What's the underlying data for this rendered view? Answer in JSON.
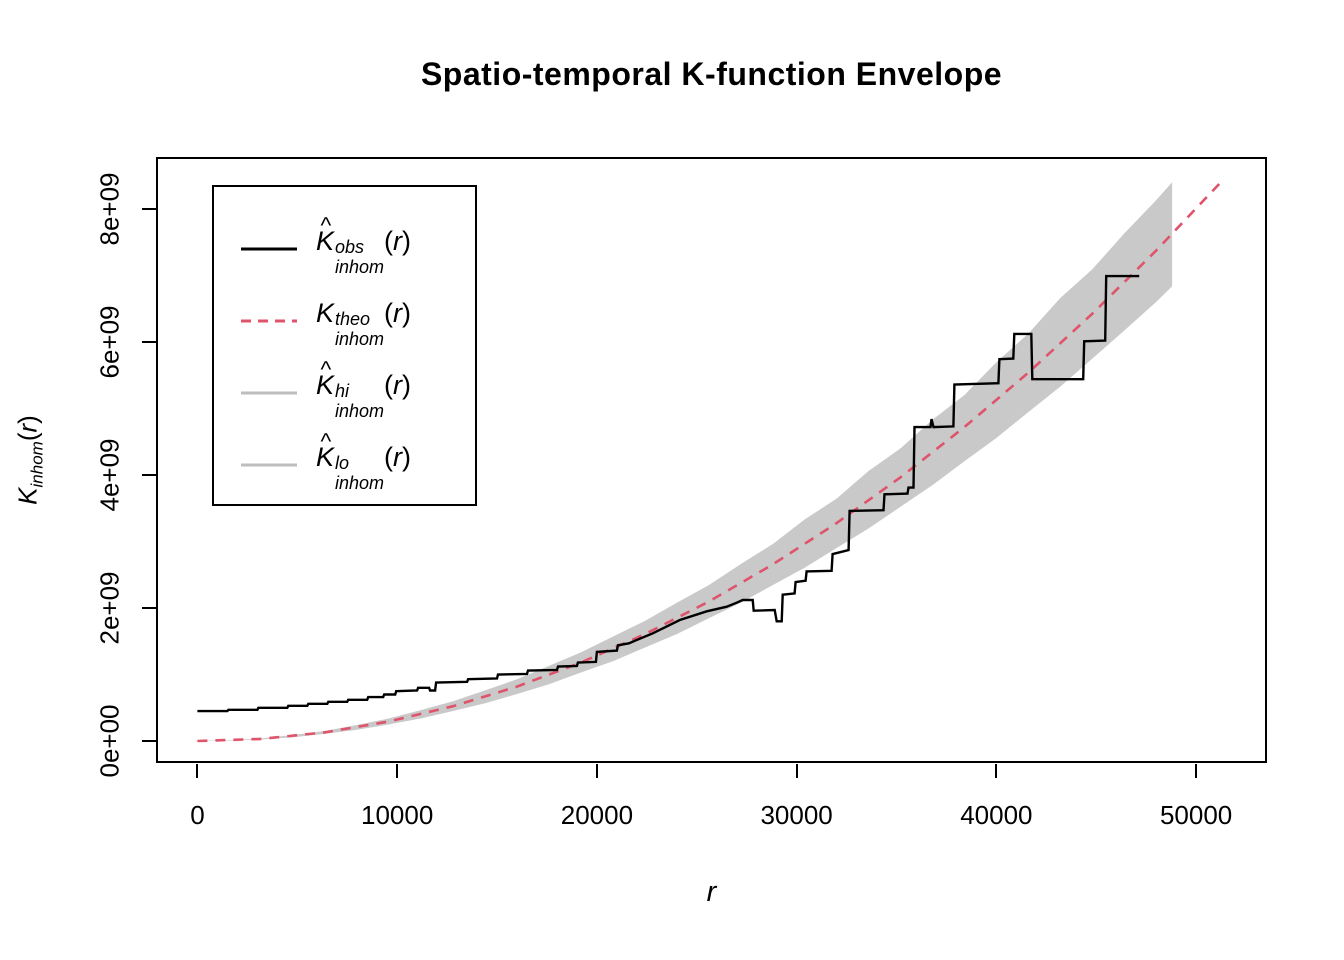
{
  "title": "Spatio-temporal K-function Envelope",
  "x_axis": {
    "label": "r",
    "ticks": [
      {
        "v": 0,
        "t": "0"
      },
      {
        "v": 10000,
        "t": "10000"
      },
      {
        "v": 20000,
        "t": "20000"
      },
      {
        "v": 30000,
        "t": "30000"
      },
      {
        "v": 40000,
        "t": "40000"
      },
      {
        "v": 50000,
        "t": "50000"
      }
    ]
  },
  "y_axis": {
    "label_base": "K",
    "label_sub": "inhom",
    "label_arg": "r",
    "ticks": [
      {
        "v": 0,
        "t": "0e+00"
      },
      {
        "v": 2,
        "t": "2e+09"
      },
      {
        "v": 4,
        "t": "4e+09"
      },
      {
        "v": 6,
        "t": "6e+09"
      },
      {
        "v": 8,
        "t": "8e+09"
      }
    ]
  },
  "colors": {
    "observed": "#000000",
    "theoretical": "#DF536B",
    "envelope_fill": "#C9C9C9",
    "legend_gray": "#BEBEBE",
    "background": "#FFFFFF",
    "text": "#000000"
  },
  "legend": {
    "entries": [
      {
        "id": "obs",
        "hat": true,
        "base": "K",
        "sup": "obs",
        "sub": "inhom",
        "arg": "r",
        "line_color": "#000000",
        "dashed": false
      },
      {
        "id": "theo",
        "hat": false,
        "base": "K",
        "sup": "theo",
        "sub": "inhom",
        "arg": "r",
        "line_color": "#DF536B",
        "dashed": true
      },
      {
        "id": "hi",
        "hat": true,
        "base": "K",
        "sup": "hi",
        "sub": "inhom",
        "arg": "r",
        "line_color": "#BEBEBE",
        "dashed": false
      },
      {
        "id": "lo",
        "hat": true,
        "base": "K",
        "sup": "lo",
        "sub": "inhom",
        "arg": "r",
        "line_color": "#BEBEBE",
        "dashed": false
      }
    ]
  },
  "chart_data": {
    "type": "line",
    "title": "Spatio-temporal K-function Envelope",
    "xlabel": "r",
    "ylabel": "K_inhom(r)",
    "y_unit": "1e9",
    "xlim": [
      -2075,
      53550
    ],
    "ylim": [
      -0.33,
      8.78
    ],
    "grid": false,
    "legend_position": "top-left",
    "series": [
      {
        "name": "obs",
        "role": "observed",
        "color": "#000000",
        "dashed": false,
        "width": 2.4,
        "points": [
          [
            0,
            0.45
          ],
          [
            1500,
            0.45
          ],
          [
            1550,
            0.47
          ],
          [
            3000,
            0.47
          ],
          [
            3050,
            0.5
          ],
          [
            4500,
            0.5
          ],
          [
            4550,
            0.53
          ],
          [
            5500,
            0.53
          ],
          [
            5550,
            0.56
          ],
          [
            6500,
            0.56
          ],
          [
            6550,
            0.59
          ],
          [
            7500,
            0.59
          ],
          [
            7550,
            0.62
          ],
          [
            8500,
            0.62
          ],
          [
            8550,
            0.66
          ],
          [
            9300,
            0.66
          ],
          [
            9350,
            0.7
          ],
          [
            9900,
            0.7
          ],
          [
            9950,
            0.75
          ],
          [
            11000,
            0.76
          ],
          [
            11050,
            0.8
          ],
          [
            11600,
            0.8
          ],
          [
            11650,
            0.76
          ],
          [
            11900,
            0.76
          ],
          [
            11950,
            0.88
          ],
          [
            13500,
            0.89
          ],
          [
            13550,
            0.93
          ],
          [
            15000,
            0.94
          ],
          [
            15050,
            1.0
          ],
          [
            16500,
            1.01
          ],
          [
            16550,
            1.06
          ],
          [
            18000,
            1.07
          ],
          [
            18050,
            1.12
          ],
          [
            19000,
            1.13
          ],
          [
            19050,
            1.18
          ],
          [
            19950,
            1.19
          ],
          [
            20000,
            1.34
          ],
          [
            21000,
            1.36
          ],
          [
            21050,
            1.44
          ],
          [
            21600,
            1.47
          ],
          [
            22800,
            1.62
          ],
          [
            24150,
            1.82
          ],
          [
            25500,
            1.95
          ],
          [
            26500,
            2.02
          ],
          [
            27000,
            2.08
          ],
          [
            27300,
            2.12
          ],
          [
            27800,
            2.12
          ],
          [
            27850,
            1.96
          ],
          [
            28900,
            1.97
          ],
          [
            29000,
            1.8
          ],
          [
            29250,
            1.8
          ],
          [
            29300,
            2.2
          ],
          [
            29900,
            2.22
          ],
          [
            29950,
            2.39
          ],
          [
            30450,
            2.41
          ],
          [
            30500,
            2.55
          ],
          [
            31750,
            2.56
          ],
          [
            31800,
            2.81
          ],
          [
            32600,
            2.87
          ],
          [
            32650,
            3.46
          ],
          [
            34350,
            3.47
          ],
          [
            34400,
            3.71
          ],
          [
            35550,
            3.72
          ],
          [
            35600,
            3.81
          ],
          [
            35850,
            3.81
          ],
          [
            35900,
            4.72
          ],
          [
            36700,
            4.72
          ],
          [
            36750,
            4.84
          ],
          [
            36850,
            4.72
          ],
          [
            37850,
            4.73
          ],
          [
            37900,
            5.36
          ],
          [
            40100,
            5.38
          ],
          [
            40150,
            5.74
          ],
          [
            40850,
            5.75
          ],
          [
            40900,
            6.12
          ],
          [
            41750,
            6.12
          ],
          [
            41800,
            5.44
          ],
          [
            44350,
            5.44
          ],
          [
            44400,
            6.01
          ],
          [
            45450,
            6.02
          ],
          [
            45500,
            6.99
          ],
          [
            47150,
            6.99
          ]
        ]
      },
      {
        "name": "theo",
        "role": "theoretical",
        "color": "#DF536B",
        "dashed": true,
        "width": 2.6,
        "points": [
          [
            0,
            0
          ],
          [
            3200,
            0.033
          ],
          [
            6400,
            0.131
          ],
          [
            9600,
            0.295
          ],
          [
            12800,
            0.524
          ],
          [
            16000,
            0.819
          ],
          [
            19200,
            1.18
          ],
          [
            22400,
            1.606
          ],
          [
            25600,
            2.097
          ],
          [
            28800,
            2.654
          ],
          [
            32000,
            3.277
          ],
          [
            35200,
            3.965
          ],
          [
            38400,
            4.719
          ],
          [
            41600,
            5.538
          ],
          [
            44800,
            6.423
          ],
          [
            48000,
            7.373
          ],
          [
            51200,
            8.389
          ]
        ]
      },
      {
        "name": "hi",
        "role": "envelope-upper",
        "color": "#C9C9C9",
        "dashed": false,
        "width": 1,
        "points": [
          [
            0,
            0.004
          ],
          [
            1600,
            0.013
          ],
          [
            3200,
            0.04
          ],
          [
            4800,
            0.091
          ],
          [
            6400,
            0.152
          ],
          [
            8000,
            0.243
          ],
          [
            9600,
            0.34
          ],
          [
            11200,
            0.466
          ],
          [
            12800,
            0.598
          ],
          [
            14400,
            0.762
          ],
          [
            16000,
            0.928
          ],
          [
            17600,
            1.13
          ],
          [
            19200,
            1.332
          ],
          [
            20800,
            1.57
          ],
          [
            22400,
            1.804
          ],
          [
            24000,
            2.08
          ],
          [
            25600,
            2.345
          ],
          [
            27200,
            2.66
          ],
          [
            28800,
            2.96
          ],
          [
            30400,
            3.33
          ],
          [
            32000,
            3.645
          ],
          [
            33600,
            4.06
          ],
          [
            35200,
            4.4
          ],
          [
            36800,
            4.83
          ],
          [
            38400,
            5.2
          ],
          [
            40000,
            5.695
          ],
          [
            41600,
            6.125
          ],
          [
            43200,
            6.66
          ],
          [
            44800,
            7.09
          ],
          [
            46400,
            7.63
          ],
          [
            48000,
            8.13
          ],
          [
            48800,
            8.4
          ]
        ]
      },
      {
        "name": "lo",
        "role": "envelope-lower",
        "color": "#C9C9C9",
        "dashed": false,
        "width": 1,
        "points": [
          [
            0,
            0.0
          ],
          [
            1600,
            0.004
          ],
          [
            3200,
            0.025
          ],
          [
            4800,
            0.058
          ],
          [
            6400,
            0.11
          ],
          [
            8000,
            0.17
          ],
          [
            9600,
            0.25
          ],
          [
            11200,
            0.34
          ],
          [
            12800,
            0.452
          ],
          [
            14400,
            0.568
          ],
          [
            16000,
            0.708
          ],
          [
            17600,
            0.855
          ],
          [
            19200,
            1.03
          ],
          [
            20800,
            1.2
          ],
          [
            22400,
            1.405
          ],
          [
            24000,
            1.608
          ],
          [
            25600,
            1.845
          ],
          [
            27200,
            2.078
          ],
          [
            28800,
            2.345
          ],
          [
            30400,
            2.605
          ],
          [
            32000,
            2.902
          ],
          [
            33600,
            3.195
          ],
          [
            35200,
            3.522
          ],
          [
            36800,
            3.848
          ],
          [
            38400,
            4.205
          ],
          [
            40000,
            4.555
          ],
          [
            41600,
            4.945
          ],
          [
            43200,
            5.328
          ],
          [
            44800,
            5.748
          ],
          [
            46400,
            6.17
          ],
          [
            48000,
            6.6
          ],
          [
            48800,
            6.835
          ]
        ]
      }
    ]
  }
}
